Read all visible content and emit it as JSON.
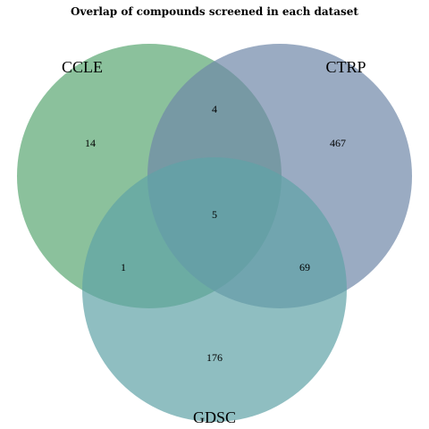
{
  "title": "Overlap of compounds screened in each dataset",
  "sets": [
    {
      "key": "ccle",
      "label": "CCLE",
      "color": "#5aa672"
    },
    {
      "key": "ctrp",
      "label": "CTRP",
      "color": "#6f87a8"
    },
    {
      "key": "gdsc",
      "label": "GDSC",
      "color": "#5fa2a6"
    }
  ],
  "regions": {
    "ccle_only": "14",
    "ctrp_only": "467",
    "gdsc_only": "176",
    "ccle_ctrp": "4",
    "ccle_gdsc": "1",
    "ctrp_gdsc": "69",
    "all_three": "5"
  }
}
